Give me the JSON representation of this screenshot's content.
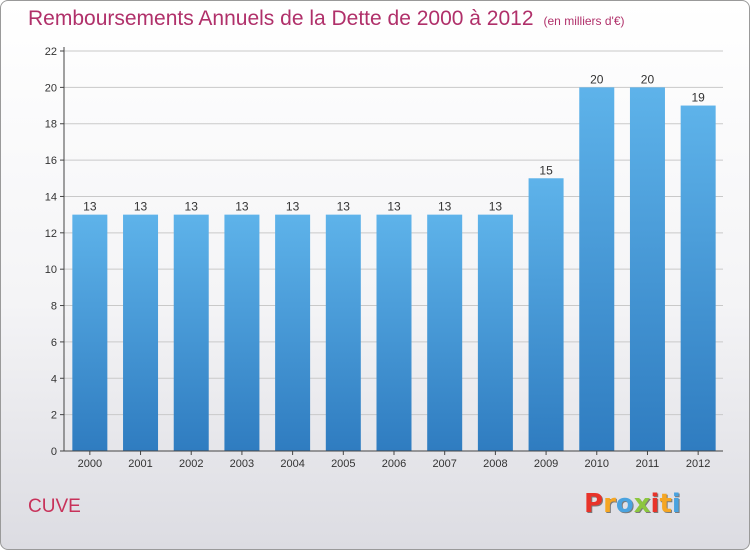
{
  "title": "Remboursements Annuels de la Dette de 2000 à 2012",
  "subtitle": "(en milliers d'€)",
  "commune": "CUVE",
  "logo": {
    "letters": [
      "P",
      "r",
      "o",
      "x",
      "i",
      "t",
      "i"
    ],
    "colors": [
      "#e8332a",
      "#f5a623",
      "#4aa3df",
      "#8cc63f",
      "#e8332a",
      "#f5a623",
      "#4aa3df"
    ]
  },
  "colors": {
    "bar_top": "#5eb3ea",
    "bar_bottom": "#2f7cc0",
    "title": "#b0306a"
  },
  "chart_data": {
    "type": "bar",
    "categories": [
      "2000",
      "2001",
      "2002",
      "2003",
      "2004",
      "2005",
      "2006",
      "2007",
      "2008",
      "2009",
      "2010",
      "2011",
      "2012"
    ],
    "values": [
      13,
      13,
      13,
      13,
      13,
      13,
      13,
      13,
      13,
      15,
      20,
      20,
      19
    ],
    "ylim": [
      0,
      22
    ],
    "yticks": [
      0,
      2,
      4,
      6,
      8,
      10,
      12,
      14,
      16,
      18,
      20,
      22
    ],
    "grid": true,
    "data_labels": true
  }
}
